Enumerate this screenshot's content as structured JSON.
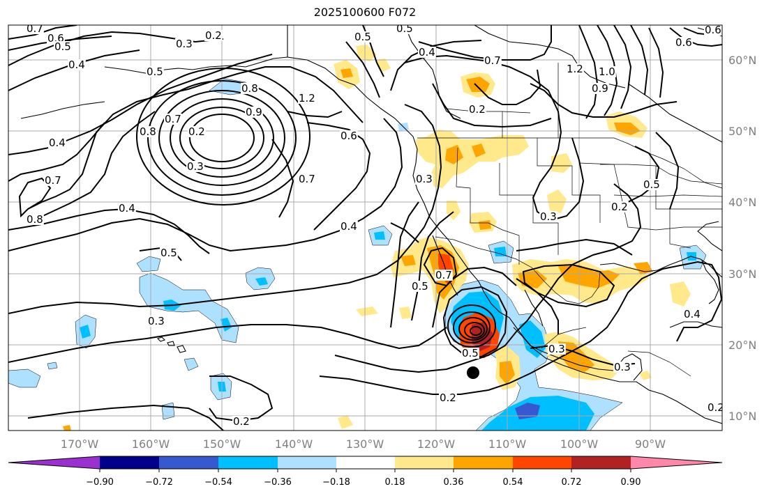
{
  "title": "2025100600 F072",
  "longitude_labels": [
    "170°W",
    "160°W",
    "150°W",
    "140°W",
    "130°W",
    "120°W",
    "110°W",
    "100°W",
    "90°W"
  ],
  "latitude_labels": [
    "60°N",
    "50°N",
    "40°N",
    "30°N",
    "20°N",
    "10°N"
  ],
  "colorbar": {
    "ticks": [
      "−0.90",
      "−0.72",
      "−0.54",
      "−0.36",
      "−0.18",
      "0.18",
      "0.36",
      "0.54",
      "0.72",
      "0.90"
    ],
    "colors": [
      "#9b30d0",
      "#00008b",
      "#3658d0",
      "#00bfff",
      "#aee0ff",
      "#ffffff",
      "#ffe98a",
      "#ffa500",
      "#ff4500",
      "#b22222",
      "#ff88aa"
    ]
  },
  "contour_labels": [
    "0.7",
    "0.6",
    "0.5",
    "0.4",
    "0.3",
    "0.2",
    "0.5",
    "0.8",
    "0.7",
    "0.2",
    "0.3",
    "0.8",
    "0.9",
    "0.4",
    "1.2",
    "0.5",
    "0.6",
    "0.7",
    "0.5",
    "0.4",
    "0.7",
    "0.8",
    "0.4",
    "0.5",
    "0.3",
    "0.4",
    "0.2",
    "0.5",
    "0.7",
    "1.2",
    "0.6",
    "0.2",
    "0.3",
    "0.2",
    "0.3",
    "0.5",
    "0.4",
    "0.3",
    "0.2",
    "0.3",
    "0.2",
    "0.7",
    "0.9",
    "1.0",
    "0.6",
    "0.5"
  ],
  "storm_marker": "tropical-cyclone-center"
}
